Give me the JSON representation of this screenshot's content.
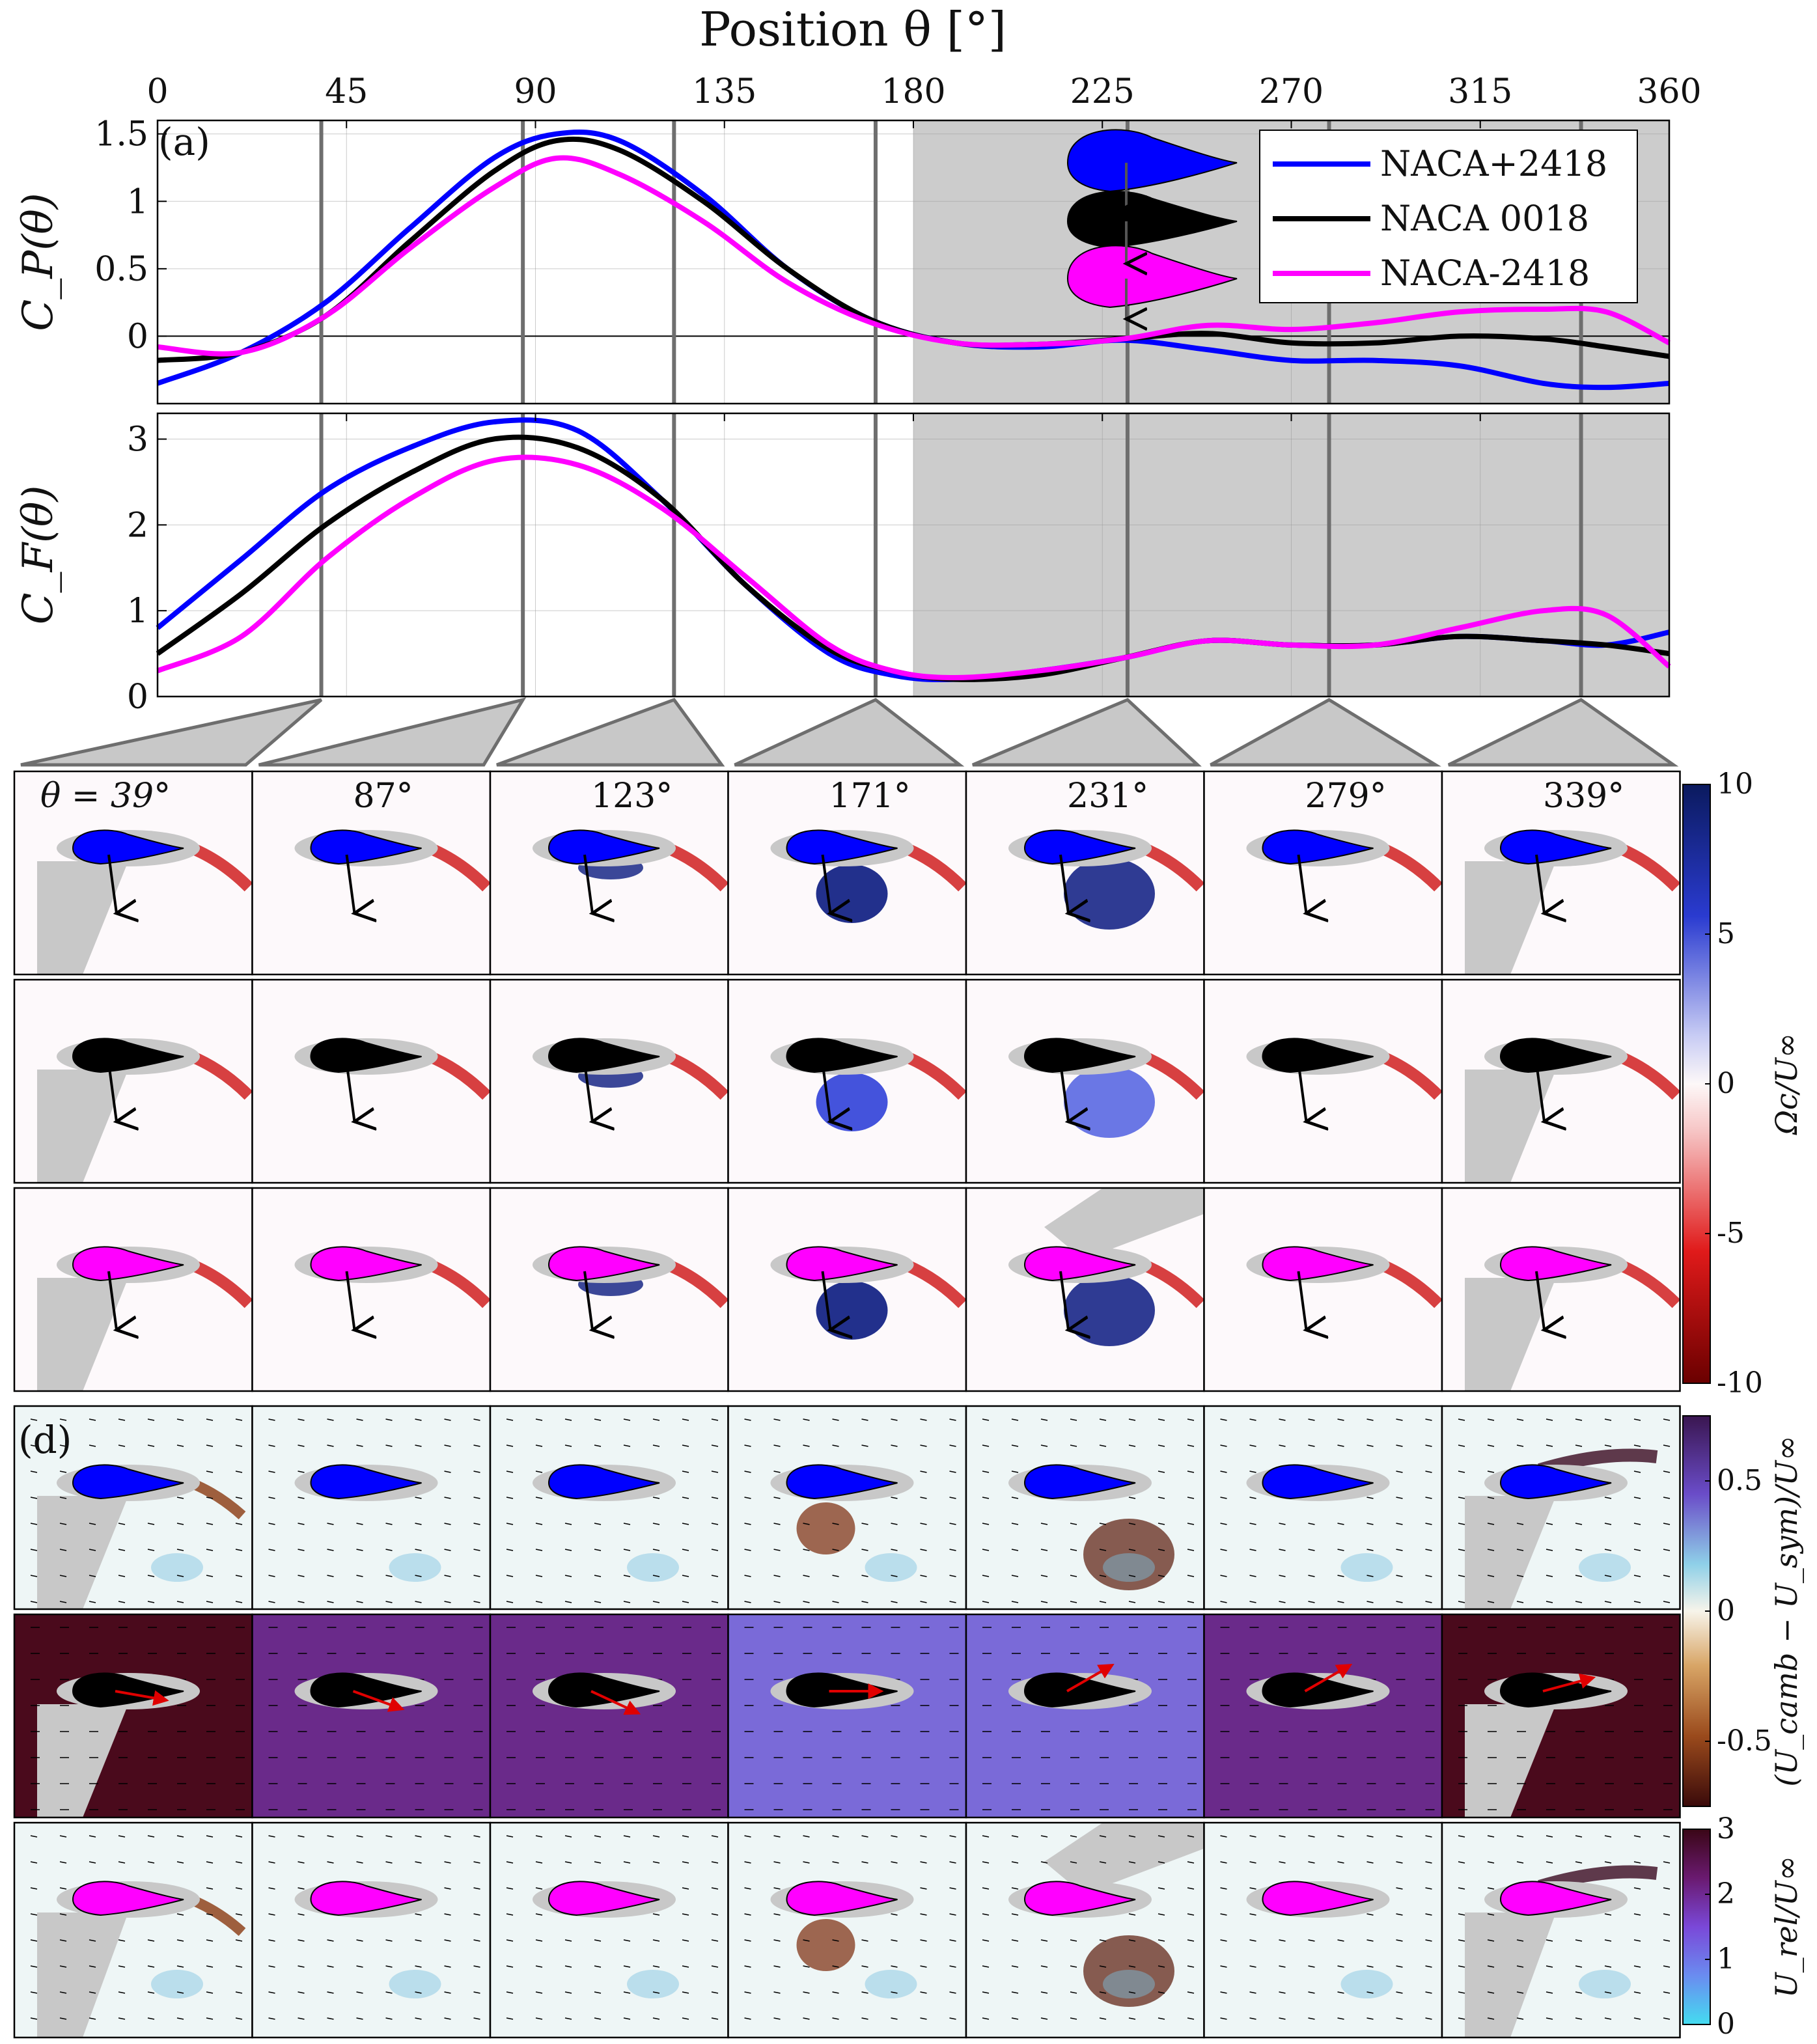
{
  "top_axis": {
    "label": "Position θ [°]",
    "ticks": [
      "0",
      "45",
      "90",
      "135",
      "180",
      "225",
      "270",
      "315",
      "360"
    ]
  },
  "chart_data": [
    {
      "type": "line",
      "panel": "(a)",
      "ylabel": "C_P(θ)",
      "xlim": [
        0,
        360
      ],
      "ylim": [
        -0.5,
        1.6
      ],
      "yticks": [
        "1.5",
        "1",
        "0.5",
        "0"
      ],
      "shaded_x_range": [
        180,
        360
      ],
      "grid": true,
      "legend_placement": "top-right",
      "x": [
        0,
        20,
        40,
        60,
        80,
        95,
        110,
        130,
        150,
        170,
        190,
        210,
        230,
        250,
        270,
        290,
        310,
        330,
        345,
        360
      ],
      "series": [
        {
          "name": "NACA+2418",
          "color": "#0000ff",
          "values": [
            -0.35,
            -0.12,
            0.25,
            0.8,
            1.32,
            1.5,
            1.45,
            1.05,
            0.5,
            0.12,
            -0.05,
            -0.08,
            -0.03,
            -0.1,
            -0.18,
            -0.18,
            -0.22,
            -0.35,
            -0.38,
            -0.35
          ]
        },
        {
          "name": "NACA 0018",
          "color": "#000000",
          "values": [
            -0.18,
            -0.12,
            0.15,
            0.7,
            1.22,
            1.45,
            1.38,
            1.0,
            0.5,
            0.12,
            -0.05,
            -0.06,
            -0.02,
            0.02,
            -0.05,
            -0.05,
            0.0,
            -0.02,
            -0.08,
            -0.15
          ]
        },
        {
          "name": "NACA-2418",
          "color": "#ff00ff",
          "values": [
            -0.08,
            -0.12,
            0.15,
            0.65,
            1.1,
            1.32,
            1.2,
            0.85,
            0.4,
            0.1,
            -0.05,
            -0.06,
            -0.02,
            0.08,
            0.05,
            0.1,
            0.18,
            0.2,
            0.18,
            -0.05
          ]
        }
      ]
    },
    {
      "type": "line",
      "ylabel": "C_F(θ)",
      "xlim": [
        0,
        360
      ],
      "ylim": [
        0,
        3.3
      ],
      "yticks": [
        "3",
        "2",
        "1",
        "0"
      ],
      "shaded_x_range": [
        180,
        360
      ],
      "grid": true,
      "x": [
        0,
        20,
        40,
        60,
        80,
        100,
        120,
        140,
        160,
        175,
        190,
        210,
        230,
        250,
        270,
        290,
        310,
        330,
        345,
        360
      ],
      "series": [
        {
          "name": "NACA+2418",
          "values": [
            0.8,
            1.6,
            2.4,
            2.9,
            3.2,
            3.1,
            2.3,
            1.3,
            0.5,
            0.25,
            0.2,
            0.3,
            0.45,
            0.65,
            0.6,
            0.6,
            0.7,
            0.65,
            0.6,
            0.75
          ]
        },
        {
          "name": "NACA 0018",
          "values": [
            0.5,
            1.2,
            2.0,
            2.6,
            3.0,
            2.9,
            2.3,
            1.3,
            0.55,
            0.3,
            0.2,
            0.25,
            0.45,
            0.65,
            0.6,
            0.6,
            0.7,
            0.65,
            0.6,
            0.5
          ]
        },
        {
          "name": "NACA-2418",
          "values": [
            0.3,
            0.7,
            1.6,
            2.3,
            2.75,
            2.7,
            2.2,
            1.4,
            0.6,
            0.3,
            0.22,
            0.3,
            0.45,
            0.65,
            0.6,
            0.6,
            0.8,
            1.0,
            0.95,
            0.35
          ]
        }
      ]
    },
    {
      "type": "heatmap",
      "colorbar": {
        "label": "Ωc/U∞",
        "ticks": [
          "10",
          "5",
          "0",
          "-5",
          "-10"
        ],
        "range": [
          -10,
          10
        ]
      }
    },
    {
      "type": "heatmap",
      "panel": "(d)",
      "colorbar": {
        "label": "(U_camb − U_sym)/U∞",
        "ticks": [
          "0.5",
          "0",
          "-0.5"
        ],
        "range": [
          -0.75,
          0.75
        ]
      }
    },
    {
      "type": "heatmap",
      "colorbar": {
        "label": "U_rel/U∞",
        "ticks": [
          "3",
          "2",
          "1",
          "0"
        ],
        "range": [
          0,
          3
        ]
      }
    }
  ],
  "legend": [
    {
      "name": "NACA+2418",
      "color": "#0000ff"
    },
    {
      "name": "NACA 0018",
      "color": "#000000"
    },
    {
      "name": "NACA-2418",
      "color": "#ff00ff"
    }
  ],
  "markers_deg": [
    39,
    87,
    123,
    171,
    231,
    279,
    339
  ],
  "snapshot_labels": [
    "θ = 39°",
    "87°",
    "123°",
    "171°",
    "231°",
    "279°",
    "339°"
  ],
  "panel_labels": {
    "a": "(a)",
    "d": "(d)"
  },
  "colors": {
    "blue": "#0000ff",
    "black": "#000000",
    "magenta": "#ff00ff",
    "shade": "#cccccc",
    "mask": "#c8c8c8",
    "vec": "#d40000"
  }
}
